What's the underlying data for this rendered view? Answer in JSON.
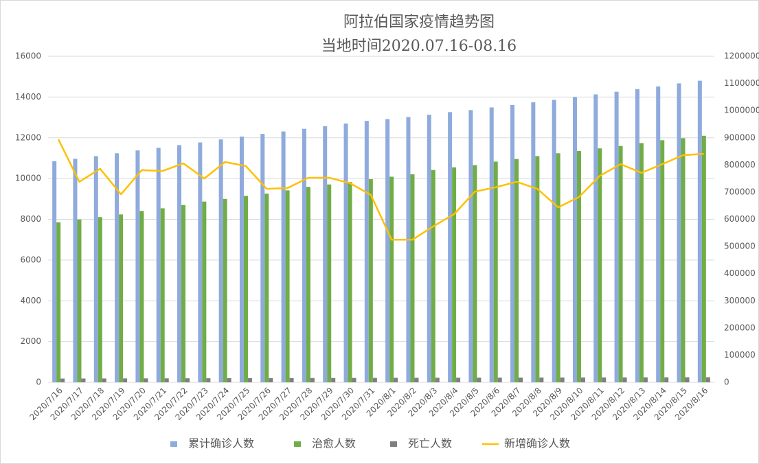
{
  "chart_data": {
    "type": "bar",
    "title": "阿拉伯国家疫情趋势图",
    "subtitle": "当地时间2020.07.16-08.16",
    "categories": [
      "2020/7/16",
      "2020/7/17",
      "2020/7/18",
      "2020/7/19",
      "2020/7/20",
      "2020/7/21",
      "2020/7/22",
      "2020/7/23",
      "2020/7/24",
      "2020/7/25",
      "2020/7/26",
      "2020/7/27",
      "2020/7/28",
      "2020/7/29",
      "2020/7/30",
      "2020/7/31",
      "2020/8/1",
      "2020/8/2",
      "2020/8/3",
      "2020/8/4",
      "2020/8/5",
      "2020/8/6",
      "2020/8/7",
      "2020/8/8",
      "2020/8/9",
      "2020/8/10",
      "2020/8/11",
      "2020/8/12",
      "2020/8/13",
      "2020/8/14",
      "2020/8/15",
      "2020/8/16"
    ],
    "series": [
      {
        "name": "累计确诊人数",
        "color": "#8faadc",
        "values": [
          10850,
          10970,
          11100,
          11240,
          11380,
          11510,
          11640,
          11770,
          11920,
          12060,
          12190,
          12310,
          12440,
          12570,
          12700,
          12830,
          12920,
          13020,
          13130,
          13260,
          13360,
          13490,
          13610,
          13740,
          13860,
          14000,
          14130,
          14260,
          14390,
          14520,
          14670,
          14800
        ]
      },
      {
        "name": "治愈人数",
        "color": "#70ad47",
        "values": [
          7850,
          7990,
          8110,
          8240,
          8410,
          8540,
          8700,
          8870,
          9000,
          9150,
          9260,
          9420,
          9590,
          9710,
          9830,
          9970,
          10090,
          10210,
          10420,
          10550,
          10660,
          10830,
          10960,
          11100,
          11240,
          11350,
          11480,
          11600,
          11740,
          11880,
          11980,
          12100
        ]
      },
      {
        "name": "死亡人数",
        "color": "#7f7f7f",
        "values": [
          184,
          186,
          188,
          190,
          192,
          195,
          197,
          200,
          202,
          204,
          207,
          209,
          211,
          213,
          215,
          218,
          220,
          222,
          224,
          226,
          228,
          230,
          232,
          234,
          236,
          238,
          240,
          242,
          244,
          246,
          248,
          250
        ]
      },
      {
        "name": "新增确诊人数",
        "color": "#ffc000",
        "type": "line",
        "axis": "y2",
        "values": [
          894000,
          738000,
          786000,
          692000,
          781000,
          778000,
          806000,
          750000,
          811000,
          796000,
          712000,
          715000,
          753000,
          753000,
          733000,
          690000,
          525000,
          525000,
          574000,
          619000,
          702000,
          718000,
          738000,
          712000,
          644000,
          682000,
          760000,
          803000,
          771000,
          803000,
          836000,
          841000
        ]
      }
    ],
    "ylim": [
      0,
      16000
    ],
    "yticks": [
      0,
      2000,
      4000,
      6000,
      8000,
      10000,
      12000,
      14000,
      16000
    ],
    "y2lim": [
      0,
      1200000
    ],
    "y2ticks": [
      0,
      100000,
      200000,
      300000,
      400000,
      500000,
      600000,
      700000,
      800000,
      900000,
      1000000,
      1100000,
      1200000
    ],
    "grid": true,
    "legend": "bottom"
  }
}
